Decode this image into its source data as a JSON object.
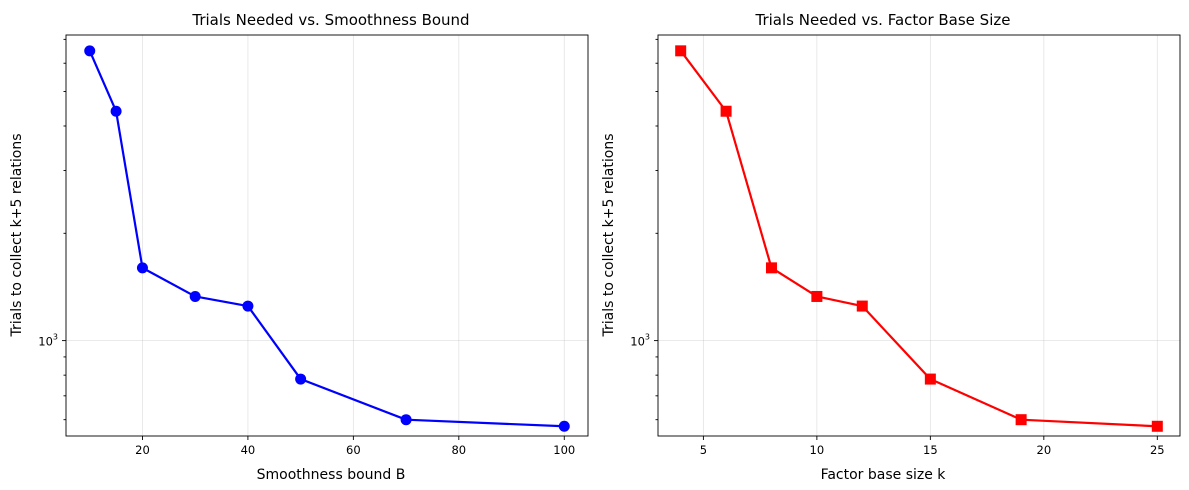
{
  "chart_data": [
    {
      "type": "line",
      "title": "Trials Needed vs. Smoothness Bound",
      "xlabel": "Smoothness bound B",
      "ylabel": "Trials to collect k+5 relations",
      "yscale": "log",
      "xlim": [
        5.5,
        104.5
      ],
      "ylim": [
        540,
        7200
      ],
      "xticks": [
        20,
        40,
        60,
        80,
        100
      ],
      "xtick_labels": [
        "20",
        "40",
        "60",
        "80",
        "100"
      ],
      "ytick_labels": [
        {
          "base": "10",
          "exp": "3"
        }
      ],
      "grid": true,
      "color": "#0000ff",
      "marker": "circle",
      "series": [
        {
          "x": [
            10,
            15,
            20,
            30,
            40,
            50,
            70,
            100
          ],
          "y": [
            6500,
            4400,
            1600,
            1330,
            1250,
            780,
            600,
            575
          ]
        }
      ]
    },
    {
      "type": "line",
      "title": "Trials Needed vs. Factor Base Size",
      "xlabel": "Factor base size k",
      "ylabel": "Trials to collect k+5 relations",
      "yscale": "log",
      "xlim": [
        3.0,
        26.0
      ],
      "ylim": [
        540,
        7200
      ],
      "xticks": [
        5,
        10,
        15,
        20,
        25
      ],
      "xtick_labels": [
        "5",
        "10",
        "15",
        "20",
        "25"
      ],
      "ytick_labels": [
        {
          "base": "10",
          "exp": "3"
        }
      ],
      "grid": true,
      "color": "#ff0000",
      "marker": "square",
      "series": [
        {
          "x": [
            4,
            6,
            8,
            10,
            12,
            15,
            19,
            25
          ],
          "y": [
            6500,
            4400,
            1600,
            1330,
            1250,
            780,
            600,
            575
          ]
        }
      ]
    }
  ]
}
